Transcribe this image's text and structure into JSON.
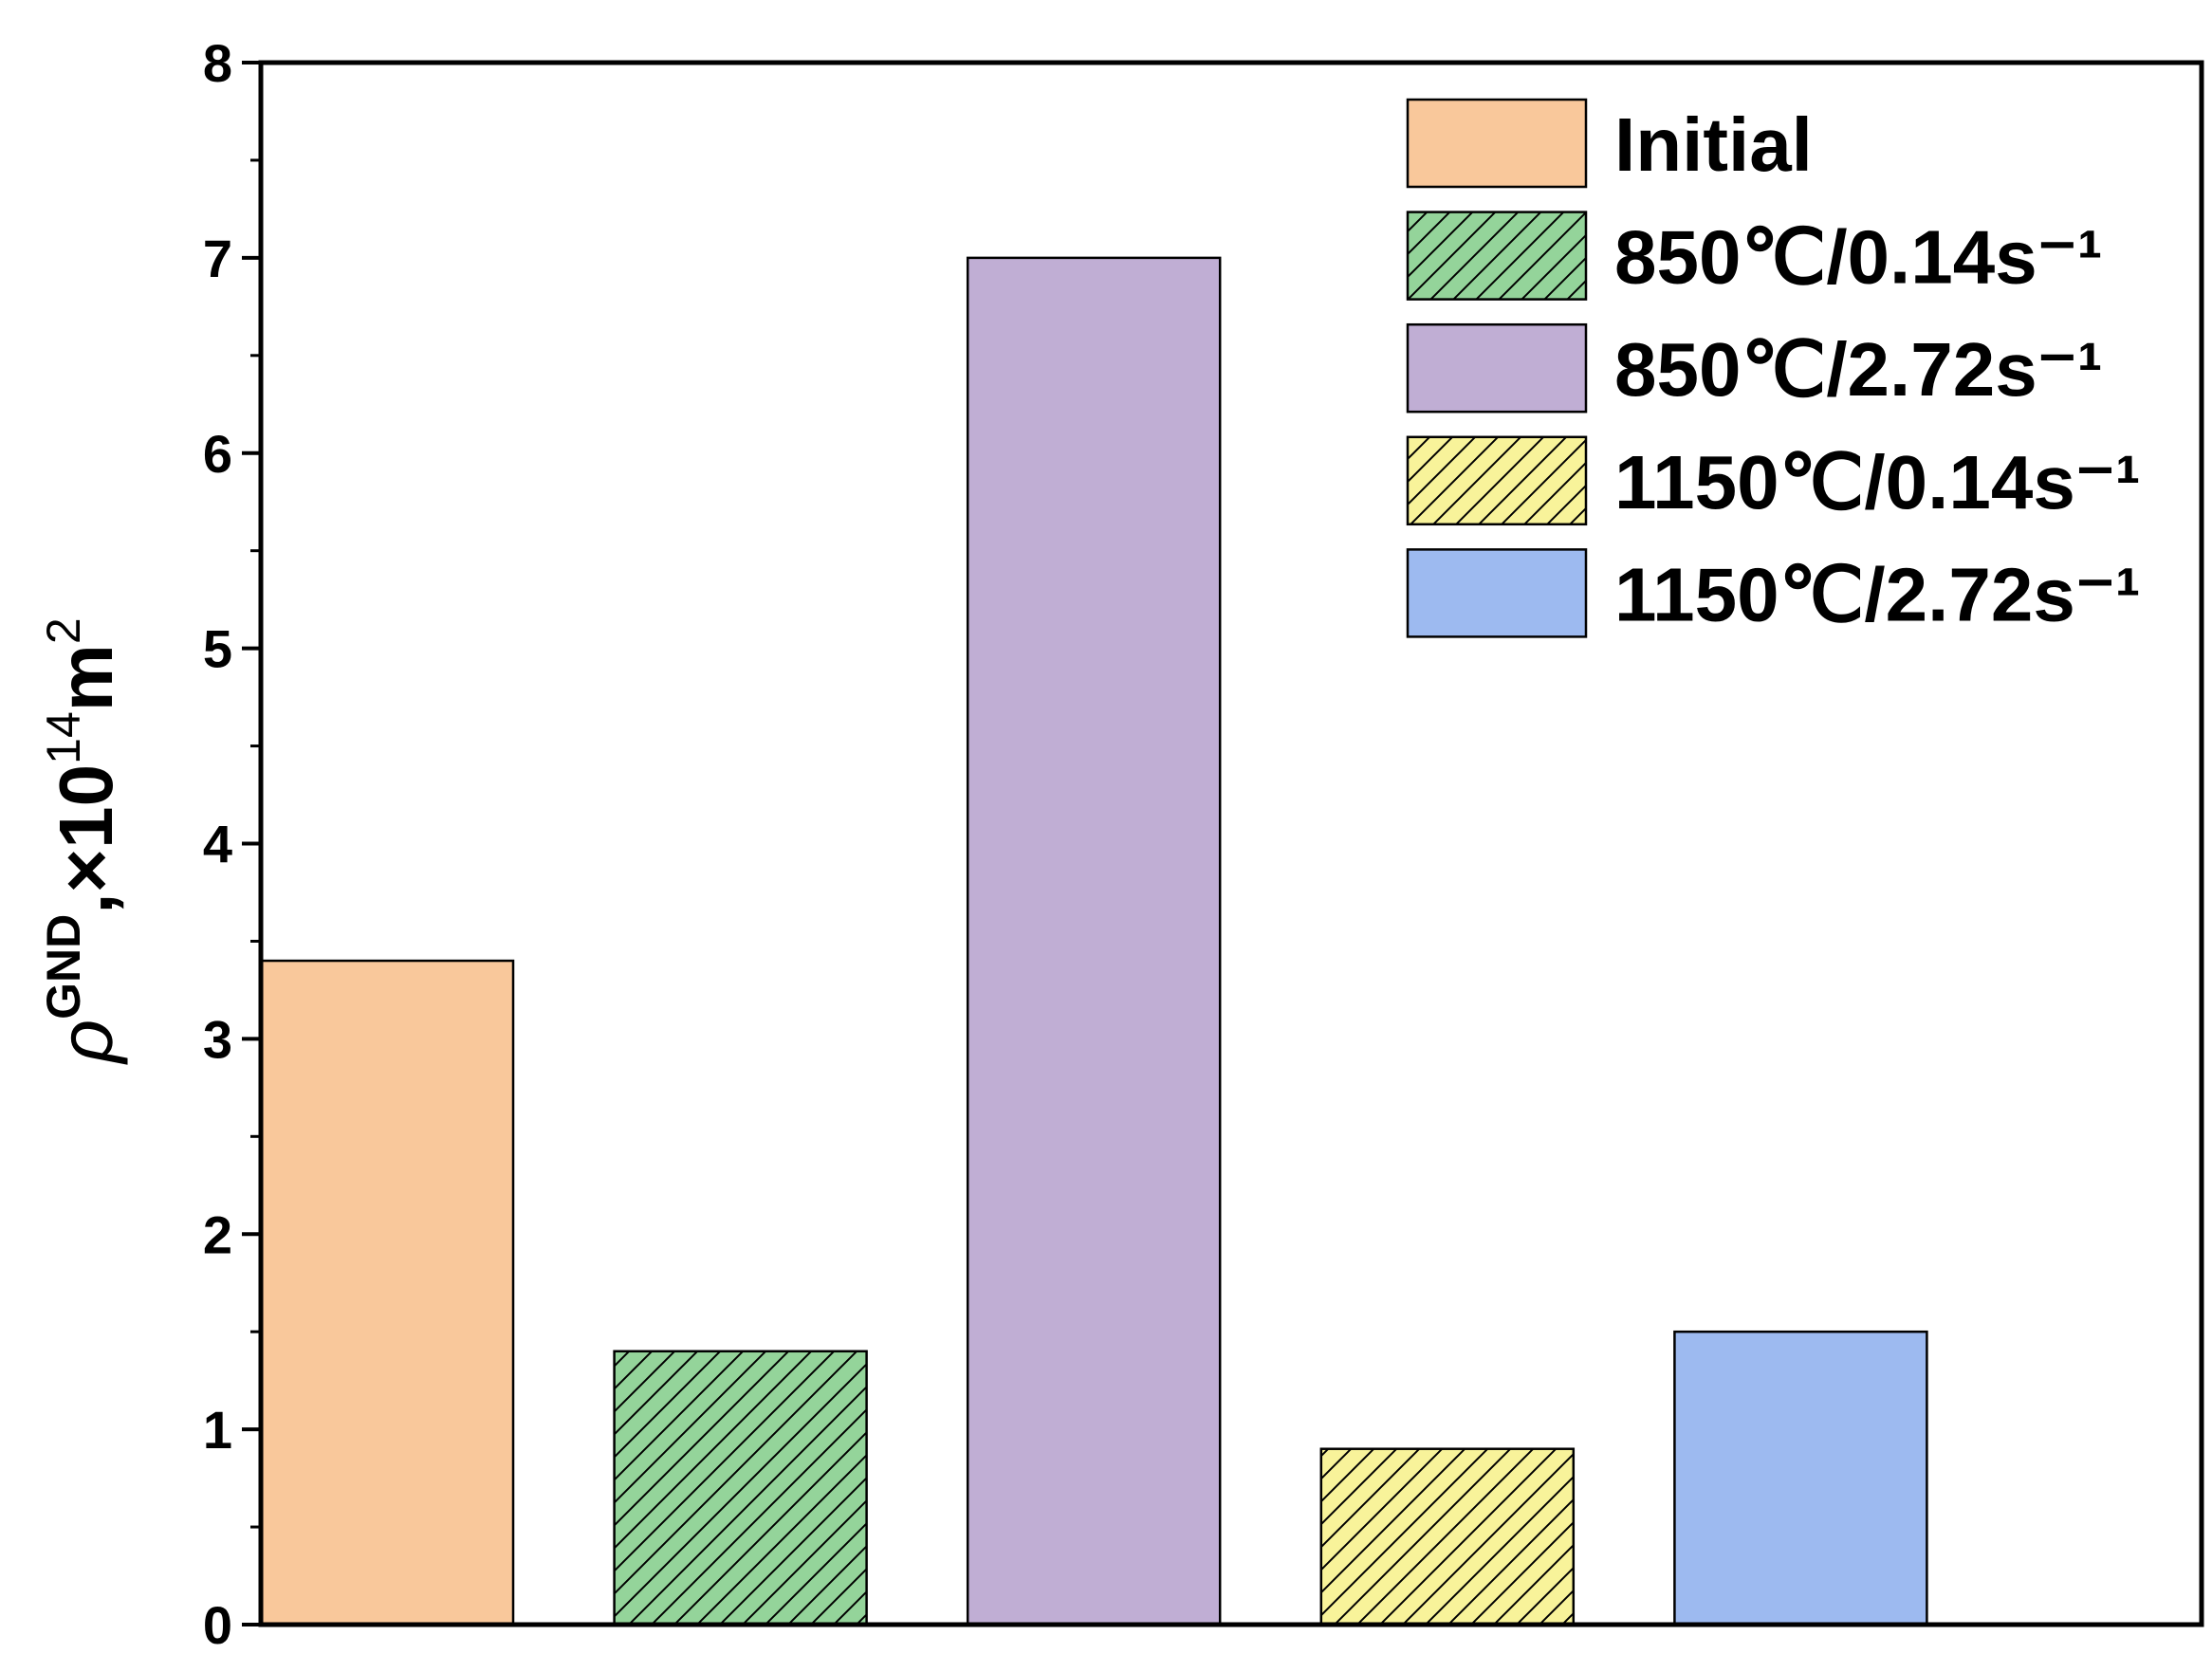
{
  "chart_data": {
    "type": "bar",
    "ylabel": [
      "ρ",
      "GND",
      ",×10",
      "14",
      "m",
      "2"
    ],
    "series": [
      {
        "name": "Initial",
        "color": "#f9c89b",
        "hatch": false,
        "values": [
          3.4
        ]
      },
      {
        "name": "850℃/0.14s⁻¹",
        "color": "#94d49a",
        "hatch": true,
        "values": [
          1.4
        ]
      },
      {
        "name": "850℃/2.72s⁻¹",
        "color": "#c0aed4",
        "hatch": false,
        "values": [
          7.0
        ]
      },
      {
        "name": "1150℃/0.14s⁻¹",
        "color": "#f8f39a",
        "hatch": true,
        "values": [
          0.9
        ]
      },
      {
        "name": "1150℃/2.72s⁻¹",
        "color": "#9dbaf0",
        "hatch": false,
        "values": [
          1.5
        ]
      }
    ],
    "ylim": [
      0,
      8
    ],
    "yticks": [
      0,
      1,
      2,
      3,
      4,
      5,
      6,
      7,
      8
    ],
    "yticks_minor": [
      0.5,
      1.5,
      2.5,
      3.5,
      4.5,
      5.5,
      6.5,
      7.5
    ],
    "grid": false,
    "legend": "upper right"
  }
}
